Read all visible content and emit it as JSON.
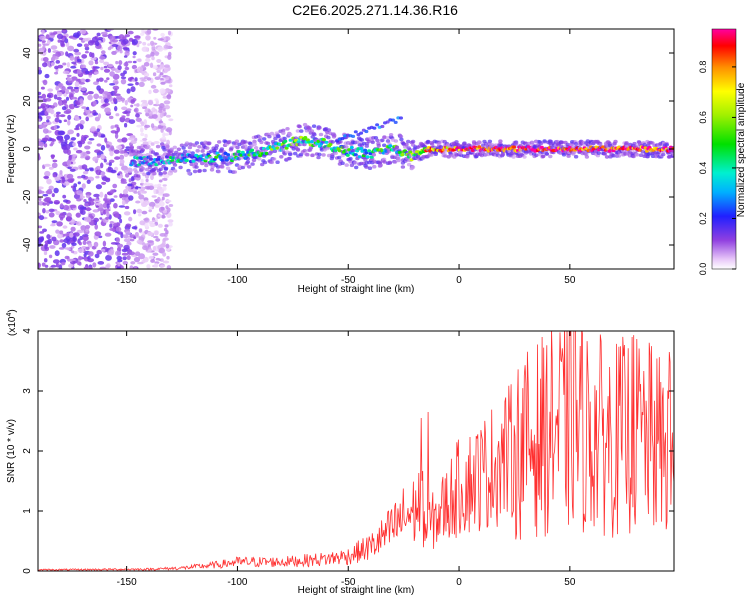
{
  "title": "C2E6.2025.271.14.36.R16",
  "chart_data": [
    {
      "type": "heatmap",
      "xlabel": "Height of straight line (km)",
      "ylabel": "Frequency (Hz)",
      "xlim": [
        -190,
        97
      ],
      "ylim": [
        -50,
        50
      ],
      "x_ticks": [
        -150,
        -100,
        -50,
        0,
        50
      ],
      "y_ticks": [
        -40,
        -20,
        0,
        20,
        40
      ],
      "x_tick_labels": [
        "-150",
        "-100",
        "-50",
        "0",
        "50"
      ],
      "y_tick_labels": [
        "-40",
        "-20",
        "0",
        "20",
        "40"
      ],
      "colorbar": {
        "label": "Normalized spectral amplitude",
        "range": [
          0,
          0.95
        ],
        "ticks": [
          0.0,
          0.2,
          0.4,
          0.6,
          0.8
        ],
        "tick_labels": [
          "0.0",
          "0.2",
          "0.4",
          "0.6",
          "0.8"
        ]
      },
      "ridge": {
        "description_points_x": [
          -145,
          -120,
          -100,
          -85,
          -70,
          -60,
          -50,
          -40,
          -30,
          -22,
          -15,
          0,
          30,
          60,
          97
        ],
        "frequency": [
          -5,
          -4,
          -3,
          0,
          4,
          2,
          -1,
          -2,
          1,
          -3,
          0,
          0,
          0,
          0,
          0
        ],
        "amplitude": [
          0.25,
          0.35,
          0.4,
          0.45,
          0.5,
          0.45,
          0.4,
          0.4,
          0.45,
          0.5,
          0.7,
          0.85,
          0.9,
          0.9,
          0.85
        ]
      },
      "noise_region_x": [
        -190,
        -130
      ]
    },
    {
      "type": "line",
      "xlabel": "Height of straight line (km)",
      "ylabel": "SNR (10 * v/v)",
      "y_scale_label": "(x10",
      "y_scale_exp": "4",
      "y_scale_close": ")",
      "xlim": [
        -190,
        97
      ],
      "ylim": [
        0,
        4
      ],
      "x_ticks": [
        -150,
        -100,
        -50,
        0,
        50
      ],
      "y_ticks": [
        0,
        1,
        2,
        3,
        4
      ],
      "x_tick_labels": [
        "-150",
        "-100",
        "-50",
        "0",
        "50"
      ],
      "y_tick_labels": [
        "0",
        "1",
        "2",
        "3",
        "4"
      ],
      "series": [
        {
          "name": "SNR",
          "color": "#ff3030",
          "trend_x": [
            -190,
            -140,
            -125,
            -110,
            -100,
            -80,
            -60,
            -50,
            -40,
            -30,
            -25,
            -20,
            -17,
            -15,
            -10,
            0,
            10,
            20,
            30,
            40,
            50,
            60,
            70,
            80,
            90,
            97
          ],
          "trend_y": [
            0.02,
            0.03,
            0.05,
            0.1,
            0.15,
            0.15,
            0.2,
            0.25,
            0.4,
            0.7,
            0.9,
            1.0,
            1.2,
            0.7,
            0.9,
            1.4,
            1.6,
            1.9,
            2.1,
            2.3,
            2.5,
            2.3,
            2.2,
            2.3,
            2.1,
            2.0
          ],
          "peaks": [
            {
              "x": -17,
              "y": 2.55
            },
            {
              "x": -14,
              "y": 2.65
            },
            {
              "x": 52,
              "y": 4.05
            },
            {
              "x": 42,
              "y": 3.55
            },
            {
              "x": 78,
              "y": 3.9
            },
            {
              "x": 86,
              "y": 3.6
            },
            {
              "x": 95,
              "y": 3.65
            }
          ]
        }
      ]
    }
  ]
}
